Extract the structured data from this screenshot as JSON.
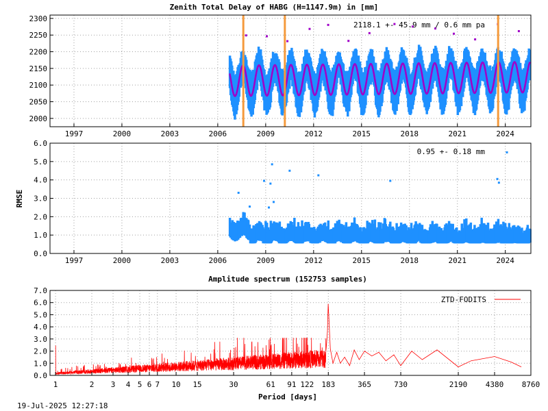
{
  "timestamp": "19-Jul-2025 12:27:18",
  "chart_data": [
    {
      "type": "scatter",
      "title": "Zenith Total Delay of HABG (H=1147.9m) in [mm]",
      "annotation": "2118.1 +-  45.9 mm /  0.6 mm pa",
      "xlim": [
        1995.5,
        2025.6
      ],
      "ylim": [
        1975,
        2310
      ],
      "x_ticks": [
        "1997",
        "2000",
        "2003",
        "2006",
        "2009",
        "2012",
        "2015",
        "2018",
        "2021",
        "2024"
      ],
      "y_ticks": [
        "2000",
        "2050",
        "2100",
        "2150",
        "2200",
        "2250",
        "2300"
      ],
      "data_start": 2006.75,
      "data_end": 2025.55,
      "mean": 2118.1,
      "seasonal_amplitude": 45.9,
      "trend_mm_per_year": 0.6,
      "breaks": [
        2007.6,
        2010.2,
        2023.55
      ],
      "colors": {
        "data": "#1e90ff",
        "model": "#a000c8",
        "break": "#f59a3c",
        "outlier": "#a000c8"
      }
    },
    {
      "type": "scatter",
      "ylabel": "RMSE",
      "annotation": "0.95 +-  0.18 mm",
      "xlim": [
        1995.5,
        2025.6
      ],
      "ylim": [
        0,
        6
      ],
      "x_ticks": [
        "1997",
        "2000",
        "2003",
        "2006",
        "2009",
        "2012",
        "2015",
        "2018",
        "2021",
        "2024"
      ],
      "y_ticks": [
        "0.0",
        "1.0",
        "2.0",
        "3.0",
        "4.0",
        "5.0",
        "6.0"
      ],
      "mean": 0.95,
      "std": 0.18,
      "outliers": [
        [
          2009.4,
          4.85
        ],
        [
          2010.5,
          4.5
        ],
        [
          2012.3,
          4.25
        ],
        [
          2008.9,
          3.95
        ],
        [
          2009.3,
          3.8
        ],
        [
          2016.8,
          3.95
        ],
        [
          2023.5,
          4.05
        ],
        [
          2023.6,
          3.85
        ],
        [
          2024.1,
          5.5
        ],
        [
          2009.5,
          2.8
        ],
        [
          2007.3,
          3.3
        ],
        [
          2008.0,
          2.55
        ],
        [
          2009.2,
          2.5
        ]
      ],
      "colors": {
        "data": "#1e90ff"
      }
    },
    {
      "type": "line",
      "title": "Amplitude spectrum (152753 samples)",
      "xlabel": "Period [days]",
      "legend": "ZTD-FODITS",
      "legend_position": "top-right",
      "ylim": [
        0,
        7
      ],
      "x_ticks": [
        "1",
        "2",
        "3",
        "4",
        "5",
        "6",
        "7",
        "10",
        "15",
        "30",
        "61",
        "91",
        "122",
        "183",
        "365",
        "730",
        "2190",
        "4380",
        "8760"
      ],
      "y_ticks": [
        "0.0",
        "1.0",
        "2.0",
        "3.0",
        "4.0",
        "5.0",
        "6.0",
        "7.0"
      ],
      "peaks": [
        [
          1,
          2.45
        ],
        [
          182.6,
          5.9
        ],
        [
          365,
          2.0
        ],
        [
          4380,
          1.55
        ]
      ],
      "colors": {
        "line": "#ff0000"
      }
    }
  ]
}
